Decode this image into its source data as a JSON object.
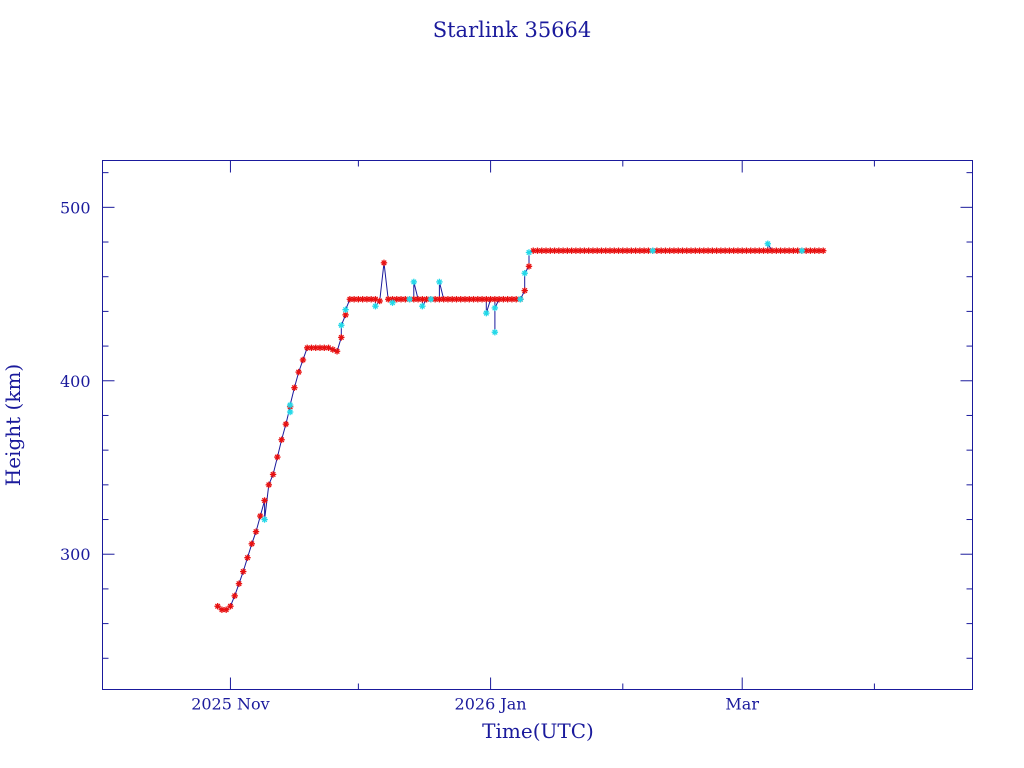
{
  "chart_data": {
    "type": "scatter",
    "title": "Starlink 35664",
    "xlabel": "Time(UTC)",
    "ylabel": "Height (km)",
    "x_scale": "time",
    "xlim": [
      "2025-10-02",
      "2026-04-24"
    ],
    "ylim": [
      222,
      527
    ],
    "x_major_ticks": [
      {
        "date": "2025-11-01",
        "label": "2025 Nov"
      },
      {
        "date": "2026-01-01",
        "label": "2026 Jan"
      },
      {
        "date": "2026-03-01",
        "label": "Mar"
      }
    ],
    "x_minor_ticks": [
      "2025-10-01",
      "2025-12-01",
      "2026-02-01",
      "2026-04-01"
    ],
    "y_major_ticks": [
      300,
      400,
      500
    ],
    "y_minor_step": 20,
    "grid": false,
    "colors": {
      "axis": "#1a1a9c",
      "line": "#1a1a9c",
      "red_marker": "#e81010",
      "cyan_marker": "#22d8e8"
    },
    "series": [
      {
        "marker": "red",
        "points": [
          [
            "2025-10-29",
            270
          ],
          [
            "2025-10-30",
            268
          ],
          [
            "2025-10-31",
            268
          ],
          [
            "2025-11-01",
            270
          ],
          [
            "2025-11-02",
            276
          ],
          [
            "2025-11-03",
            283
          ],
          [
            "2025-11-04",
            290
          ],
          [
            "2025-11-05",
            298
          ],
          [
            "2025-11-06",
            306
          ],
          [
            "2025-11-07",
            313
          ],
          [
            "2025-11-08",
            322
          ],
          [
            "2025-11-09",
            331
          ],
          [
            "2025-11-10",
            340
          ],
          [
            "2025-11-11",
            346
          ],
          [
            "2025-11-12",
            356
          ],
          [
            "2025-11-13",
            366
          ],
          [
            "2025-11-14",
            375
          ],
          [
            "2025-11-15",
            385
          ],
          [
            "2025-11-16",
            396
          ],
          [
            "2025-11-17",
            405
          ],
          [
            "2025-11-18",
            412
          ],
          [
            "2025-11-19",
            419
          ],
          [
            "2025-11-20",
            419
          ],
          [
            "2025-11-21",
            419
          ],
          [
            "2025-11-22",
            419
          ],
          [
            "2025-11-23",
            419
          ],
          [
            "2025-11-24",
            419
          ],
          [
            "2025-11-25",
            418
          ],
          [
            "2025-11-26",
            417
          ],
          [
            "2025-11-27",
            425
          ],
          [
            "2025-11-28",
            438
          ],
          [
            "2025-11-29",
            447
          ],
          [
            "2025-11-30",
            447
          ],
          [
            "2025-12-01",
            447
          ],
          [
            "2025-12-02",
            447
          ],
          [
            "2025-12-03",
            447
          ],
          [
            "2025-12-04",
            447
          ],
          [
            "2025-12-05",
            447
          ],
          [
            "2025-12-06",
            446
          ],
          [
            "2025-12-07",
            468
          ],
          [
            "2025-12-08",
            447
          ],
          [
            "2025-12-09",
            447
          ],
          [
            "2025-12-10",
            447
          ],
          [
            "2025-12-11",
            447
          ],
          [
            "2025-12-12",
            447
          ],
          [
            "2025-12-13",
            447
          ],
          [
            "2025-12-14",
            447
          ],
          [
            "2025-12-15",
            447
          ],
          [
            "2025-12-16",
            447
          ],
          [
            "2025-12-17",
            447
          ],
          [
            "2025-12-18",
            447
          ],
          [
            "2025-12-19",
            447
          ],
          [
            "2025-12-20",
            447
          ],
          [
            "2025-12-21",
            447
          ],
          [
            "2025-12-22",
            447
          ],
          [
            "2025-12-23",
            447
          ],
          [
            "2025-12-24",
            447
          ],
          [
            "2025-12-25",
            447
          ],
          [
            "2025-12-26",
            447
          ],
          [
            "2025-12-27",
            447
          ],
          [
            "2025-12-28",
            447
          ],
          [
            "2025-12-29",
            447
          ],
          [
            "2025-12-30",
            447
          ],
          [
            "2025-12-31",
            447
          ],
          [
            "2026-01-01",
            447
          ],
          [
            "2026-01-02",
            447
          ],
          [
            "2026-01-03",
            447
          ],
          [
            "2026-01-04",
            447
          ],
          [
            "2026-01-05",
            447
          ],
          [
            "2026-01-06",
            447
          ],
          [
            "2026-01-07",
            447
          ],
          [
            "2026-01-08",
            447
          ],
          [
            "2026-01-09",
            452
          ],
          [
            "2026-01-10",
            466
          ],
          [
            "2026-01-11",
            475
          ],
          [
            "2026-01-12",
            475
          ],
          [
            "2026-01-13",
            475
          ],
          [
            "2026-01-14",
            475
          ],
          [
            "2026-01-15",
            475
          ],
          [
            "2026-01-16",
            475
          ],
          [
            "2026-01-17",
            475
          ],
          [
            "2026-01-18",
            475
          ],
          [
            "2026-01-19",
            475
          ],
          [
            "2026-01-20",
            475
          ],
          [
            "2026-01-21",
            475
          ],
          [
            "2026-01-22",
            475
          ],
          [
            "2026-01-23",
            475
          ],
          [
            "2026-01-24",
            475
          ],
          [
            "2026-01-25",
            475
          ],
          [
            "2026-01-26",
            475
          ],
          [
            "2026-01-27",
            475
          ],
          [
            "2026-01-28",
            475
          ],
          [
            "2026-01-29",
            475
          ],
          [
            "2026-01-30",
            475
          ],
          [
            "2026-01-31",
            475
          ],
          [
            "2026-02-01",
            475
          ],
          [
            "2026-02-02",
            475
          ],
          [
            "2026-02-03",
            475
          ],
          [
            "2026-02-04",
            475
          ],
          [
            "2026-02-05",
            475
          ],
          [
            "2026-02-06",
            475
          ],
          [
            "2026-02-07",
            475
          ],
          [
            "2026-02-08",
            475
          ],
          [
            "2026-02-09",
            475
          ],
          [
            "2026-02-10",
            475
          ],
          [
            "2026-02-11",
            475
          ],
          [
            "2026-02-12",
            475
          ],
          [
            "2026-02-13",
            475
          ],
          [
            "2026-02-14",
            475
          ],
          [
            "2026-02-15",
            475
          ],
          [
            "2026-02-16",
            475
          ],
          [
            "2026-02-17",
            475
          ],
          [
            "2026-02-18",
            475
          ],
          [
            "2026-02-19",
            475
          ],
          [
            "2026-02-20",
            475
          ],
          [
            "2026-02-21",
            475
          ],
          [
            "2026-02-22",
            475
          ],
          [
            "2026-02-23",
            475
          ],
          [
            "2026-02-24",
            475
          ],
          [
            "2026-02-25",
            475
          ],
          [
            "2026-02-26",
            475
          ],
          [
            "2026-02-27",
            475
          ],
          [
            "2026-02-28",
            475
          ],
          [
            "2026-03-01",
            475
          ],
          [
            "2026-03-02",
            475
          ],
          [
            "2026-03-03",
            475
          ],
          [
            "2026-03-04",
            475
          ],
          [
            "2026-03-05",
            475
          ],
          [
            "2026-03-06",
            475
          ],
          [
            "2026-03-07",
            475
          ],
          [
            "2026-03-08",
            475
          ],
          [
            "2026-03-09",
            475
          ],
          [
            "2026-03-10",
            475
          ],
          [
            "2026-03-11",
            475
          ],
          [
            "2026-03-12",
            475
          ],
          [
            "2026-03-13",
            475
          ],
          [
            "2026-03-14",
            475
          ],
          [
            "2026-03-15",
            475
          ],
          [
            "2026-03-16",
            475
          ],
          [
            "2026-03-17",
            475
          ],
          [
            "2026-03-18",
            475
          ],
          [
            "2026-03-19",
            475
          ],
          [
            "2026-03-20",
            475
          ]
        ]
      },
      {
        "marker": "cyan",
        "points": [
          [
            "2025-11-09",
            320
          ],
          [
            "2025-11-15",
            382
          ],
          [
            "2025-11-15",
            386
          ],
          [
            "2025-11-27",
            432
          ],
          [
            "2025-11-28",
            441
          ],
          [
            "2025-12-05",
            443
          ],
          [
            "2025-12-09",
            445
          ],
          [
            "2025-12-13",
            447
          ],
          [
            "2025-12-14",
            457
          ],
          [
            "2025-12-16",
            443
          ],
          [
            "2025-12-18",
            447
          ],
          [
            "2025-12-20",
            457
          ],
          [
            "2025-12-31",
            439
          ],
          [
            "2026-01-02",
            428
          ],
          [
            "2026-01-02",
            442
          ],
          [
            "2026-01-08",
            447
          ],
          [
            "2026-01-09",
            462
          ],
          [
            "2026-01-10",
            474
          ],
          [
            "2026-02-08",
            475
          ],
          [
            "2026-03-07",
            479
          ],
          [
            "2026-03-15",
            475
          ]
        ]
      }
    ]
  }
}
